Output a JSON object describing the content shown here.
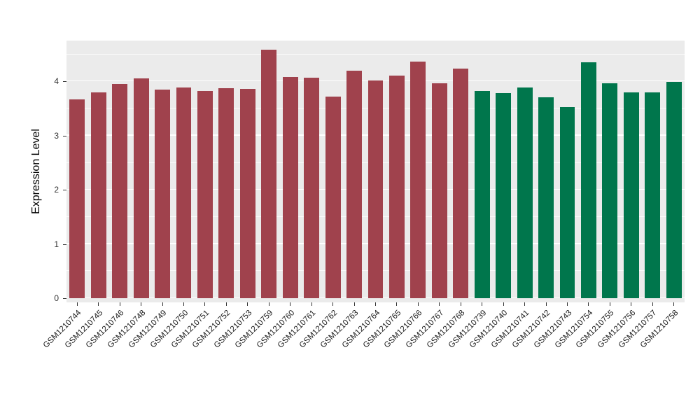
{
  "chart_data": {
    "type": "bar",
    "title": "",
    "xlabel": "",
    "ylabel": "Expression Level",
    "ylim": [
      0,
      4.75
    ],
    "yticks": [
      0,
      1,
      2,
      3,
      4
    ],
    "grid": "on",
    "legend": "none",
    "panel_background": "#EBEBEB",
    "group_colors": {
      "groupA": "#A0424D",
      "groupB": "#00764C"
    },
    "bars": [
      {
        "label": "GSM1210744",
        "value": 3.66,
        "group": "groupA"
      },
      {
        "label": "GSM1210745",
        "value": 3.79,
        "group": "groupA"
      },
      {
        "label": "GSM1210746",
        "value": 3.95,
        "group": "groupA"
      },
      {
        "label": "GSM1210748",
        "value": 4.05,
        "group": "groupA"
      },
      {
        "label": "GSM1210749",
        "value": 3.85,
        "group": "groupA"
      },
      {
        "label": "GSM1210750",
        "value": 3.89,
        "group": "groupA"
      },
      {
        "label": "GSM1210751",
        "value": 3.82,
        "group": "groupA"
      },
      {
        "label": "GSM1210752",
        "value": 3.87,
        "group": "groupA"
      },
      {
        "label": "GSM1210753",
        "value": 3.86,
        "group": "groupA"
      },
      {
        "label": "GSM1210759",
        "value": 4.58,
        "group": "groupA"
      },
      {
        "label": "GSM1210760",
        "value": 4.08,
        "group": "groupA"
      },
      {
        "label": "GSM1210761",
        "value": 4.07,
        "group": "groupA"
      },
      {
        "label": "GSM1210762",
        "value": 3.72,
        "group": "groupA"
      },
      {
        "label": "GSM1210763",
        "value": 4.19,
        "group": "groupA"
      },
      {
        "label": "GSM1210764",
        "value": 4.01,
        "group": "groupA"
      },
      {
        "label": "GSM1210765",
        "value": 4.1,
        "group": "groupA"
      },
      {
        "label": "GSM1210766",
        "value": 4.36,
        "group": "groupA"
      },
      {
        "label": "GSM1210767",
        "value": 3.96,
        "group": "groupA"
      },
      {
        "label": "GSM1210768",
        "value": 4.23,
        "group": "groupA"
      },
      {
        "label": "GSM1210739",
        "value": 3.82,
        "group": "groupB"
      },
      {
        "label": "GSM1210740",
        "value": 3.78,
        "group": "groupB"
      },
      {
        "label": "GSM1210741",
        "value": 3.89,
        "group": "groupB"
      },
      {
        "label": "GSM1210742",
        "value": 3.7,
        "group": "groupB"
      },
      {
        "label": "GSM1210743",
        "value": 3.52,
        "group": "groupB"
      },
      {
        "label": "GSM1210754",
        "value": 4.35,
        "group": "groupB"
      },
      {
        "label": "GSM1210755",
        "value": 3.96,
        "group": "groupB"
      },
      {
        "label": "GSM1210756",
        "value": 3.79,
        "group": "groupB"
      },
      {
        "label": "GSM1210757",
        "value": 3.8,
        "group": "groupB"
      },
      {
        "label": "GSM1210758",
        "value": 3.99,
        "group": "groupB"
      }
    ]
  }
}
